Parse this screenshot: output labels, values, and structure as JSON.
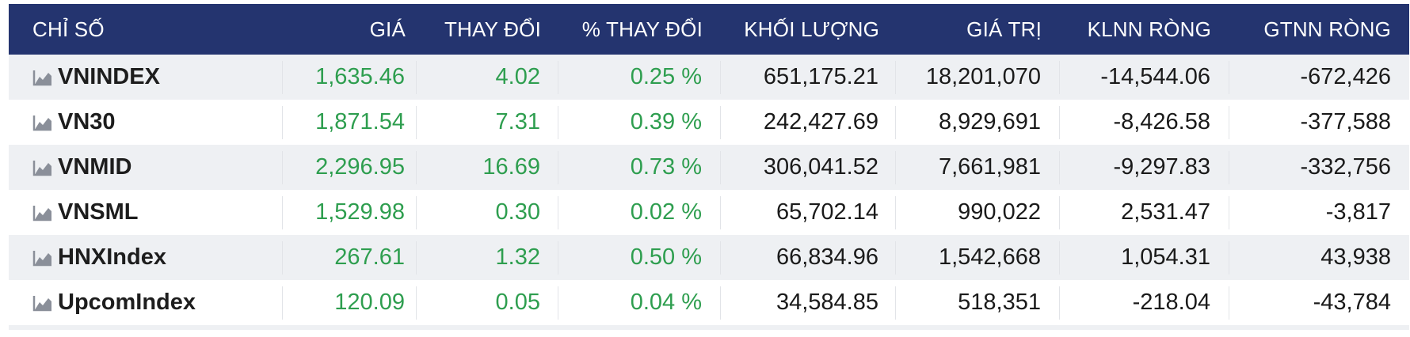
{
  "header": {
    "col_index": "CHỈ SỐ",
    "col_price": "GIÁ",
    "col_change": "THAY ĐỔI",
    "col_pct_change": "% THAY ĐỔI",
    "col_volume": "KHỐI LƯỢNG",
    "col_value": "GIÁ TRỊ",
    "col_foreign_net_vol": "KLNN RÒNG",
    "col_foreign_net_val": "GTNN RÒNG"
  },
  "colors": {
    "header_bg": "#24346f",
    "positive": "#2e9e4f",
    "row_alt": "#eef0f3"
  },
  "rows": [
    {
      "name": "VNINDEX",
      "icon": "chart-icon",
      "price": "1,635.46",
      "change": "4.02",
      "pct": "0.25 %",
      "volume": "651,175.21",
      "value": "18,201,070",
      "foreign_vol": "-14,544.06",
      "foreign_val": "-672,426"
    },
    {
      "name": "VN30",
      "icon": "chart-icon",
      "price": "1,871.54",
      "change": "7.31",
      "pct": "0.39 %",
      "volume": "242,427.69",
      "value": "8,929,691",
      "foreign_vol": "-8,426.58",
      "foreign_val": "-377,588"
    },
    {
      "name": "VNMID",
      "icon": "chart-icon",
      "price": "2,296.95",
      "change": "16.69",
      "pct": "0.73 %",
      "volume": "306,041.52",
      "value": "7,661,981",
      "foreign_vol": "-9,297.83",
      "foreign_val": "-332,756"
    },
    {
      "name": "VNSML",
      "icon": "chart-icon",
      "price": "1,529.98",
      "change": "0.30",
      "pct": "0.02 %",
      "volume": "65,702.14",
      "value": "990,022",
      "foreign_vol": "2,531.47",
      "foreign_val": "-3,817"
    },
    {
      "name": "HNXIndex",
      "icon": "chart-icon",
      "price": "267.61",
      "change": "1.32",
      "pct": "0.50 %",
      "volume": "66,834.96",
      "value": "1,542,668",
      "foreign_vol": "1,054.31",
      "foreign_val": "43,938"
    },
    {
      "name": "UpcomIndex",
      "icon": "chart-icon",
      "price": "120.09",
      "change": "0.05",
      "pct": "0.04 %",
      "volume": "34,584.85",
      "value": "518,351",
      "foreign_vol": "-218.04",
      "foreign_val": "-43,784"
    }
  ]
}
